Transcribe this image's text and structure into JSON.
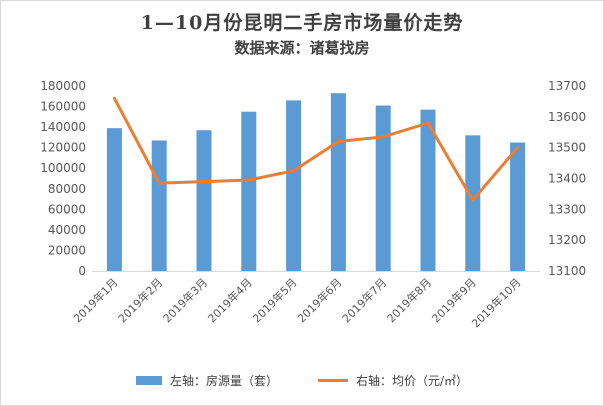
{
  "title": "1—10月份昆明二手房市场量价走势",
  "subtitle": "数据来源：诸葛找房",
  "chart_data": {
    "type": "bar",
    "categories": [
      "2019年1月",
      "2019年2月",
      "2019年3月",
      "2019年4月",
      "2019年5月",
      "2019年6月",
      "2019年7月",
      "2019年8月",
      "2019年9月",
      "2019年10月"
    ],
    "series": [
      {
        "name": "左轴：房源量（套）",
        "type": "bar",
        "axis": "left",
        "color": "#5b9bd5",
        "values": [
          139000,
          127000,
          137000,
          155000,
          166000,
          173000,
          161000,
          157000,
          132000,
          125000
        ]
      },
      {
        "name": "右轴：均价（元/㎡）",
        "type": "line",
        "axis": "right",
        "color": "#ed7d31",
        "values": [
          13660,
          13385,
          13390,
          13395,
          13425,
          13520,
          13535,
          13580,
          13330,
          13500
        ]
      }
    ],
    "y_left": {
      "min": 0,
      "max": 180000,
      "ticks": [
        "0",
        "20000",
        "40000",
        "60000",
        "80000",
        "100000",
        "120000",
        "140000",
        "160000",
        "180000"
      ]
    },
    "y_right": {
      "min": 13100,
      "max": 13700,
      "ticks": [
        "13100",
        "13200",
        "13300",
        "13400",
        "13500",
        "13600",
        "13700"
      ]
    },
    "legend": "bottom",
    "grid": false
  }
}
